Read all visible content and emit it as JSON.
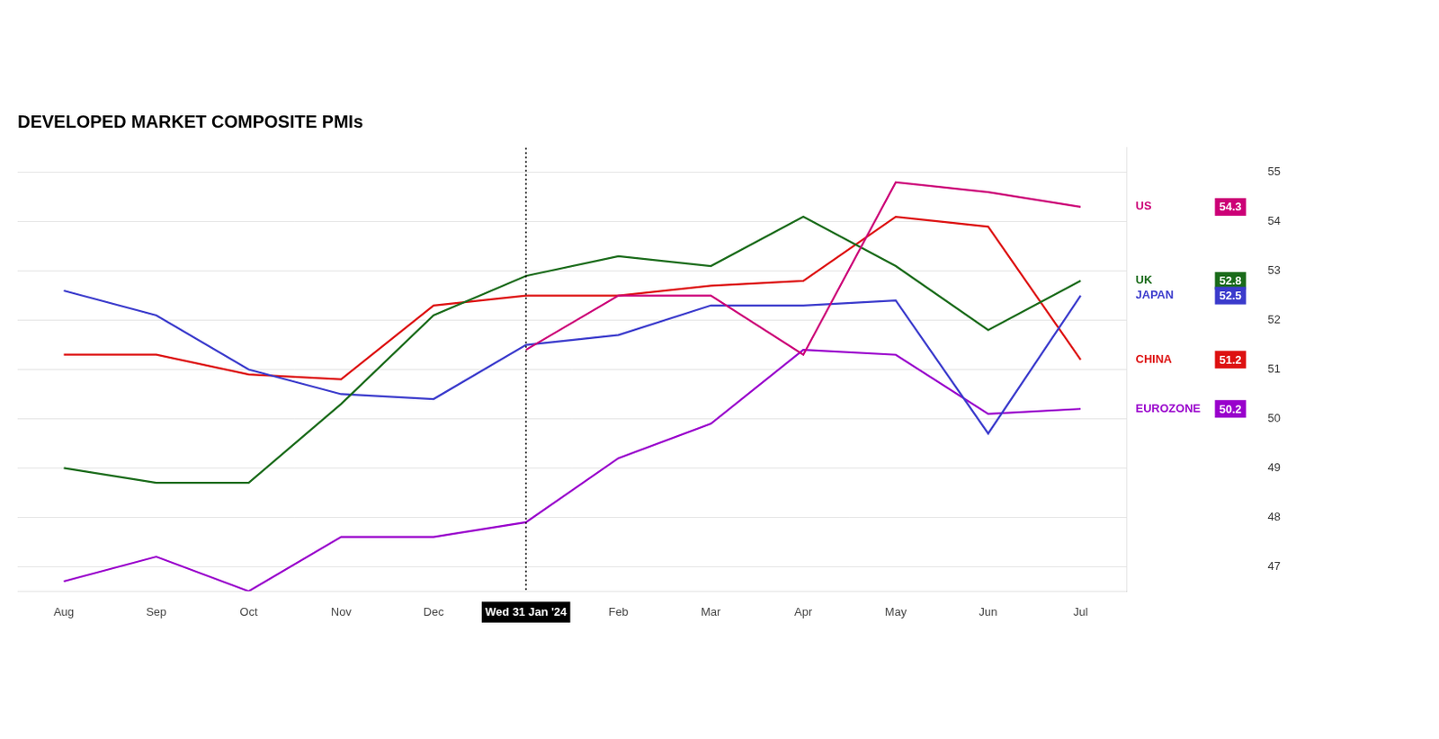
{
  "chart_data": {
    "type": "line",
    "title": "DEVELOPED MARKET COMPOSITE PMIs",
    "categories": [
      "Aug",
      "Sep",
      "Oct",
      "Nov",
      "Dec",
      "Wed 31 Jan '24",
      "Feb",
      "Mar",
      "Apr",
      "May",
      "Jun",
      "Jul"
    ],
    "series": [
      {
        "name": "US",
        "color": "#cc0077",
        "values": [
          null,
          null,
          null,
          null,
          null,
          51.4,
          52.5,
          52.5,
          51.3,
          54.8,
          54.6,
          54.3
        ]
      },
      {
        "name": "UK",
        "color": "#1a6b1a",
        "values": [
          49.0,
          48.7,
          48.7,
          50.3,
          52.1,
          52.9,
          53.3,
          53.1,
          54.1,
          53.1,
          51.8,
          52.8
        ]
      },
      {
        "name": "JAPAN",
        "color": "#3b3bcc",
        "values": [
          52.6,
          52.1,
          51.0,
          50.5,
          50.4,
          51.5,
          51.7,
          52.3,
          52.3,
          52.4,
          49.7,
          52.5
        ]
      },
      {
        "name": "CHINA",
        "color": "#dd1111",
        "values": [
          51.3,
          51.3,
          50.9,
          50.8,
          52.3,
          52.5,
          52.5,
          52.7,
          52.8,
          54.1,
          53.9,
          51.2
        ]
      },
      {
        "name": "EUROZONE",
        "color": "#9900cc",
        "values": [
          46.7,
          47.2,
          46.5,
          47.6,
          47.6,
          47.9,
          49.2,
          49.9,
          51.4,
          51.3,
          50.1,
          50.2
        ]
      }
    ],
    "ylim": [
      46.5,
      55.5
    ],
    "yticks": [
      47,
      48,
      49,
      50,
      51,
      52,
      53,
      54,
      55
    ],
    "grid": true,
    "annotations": [
      {
        "type": "vline",
        "x": "Wed 31 Jan '24",
        "line_style": "dotted",
        "color": "#000000"
      }
    ]
  }
}
